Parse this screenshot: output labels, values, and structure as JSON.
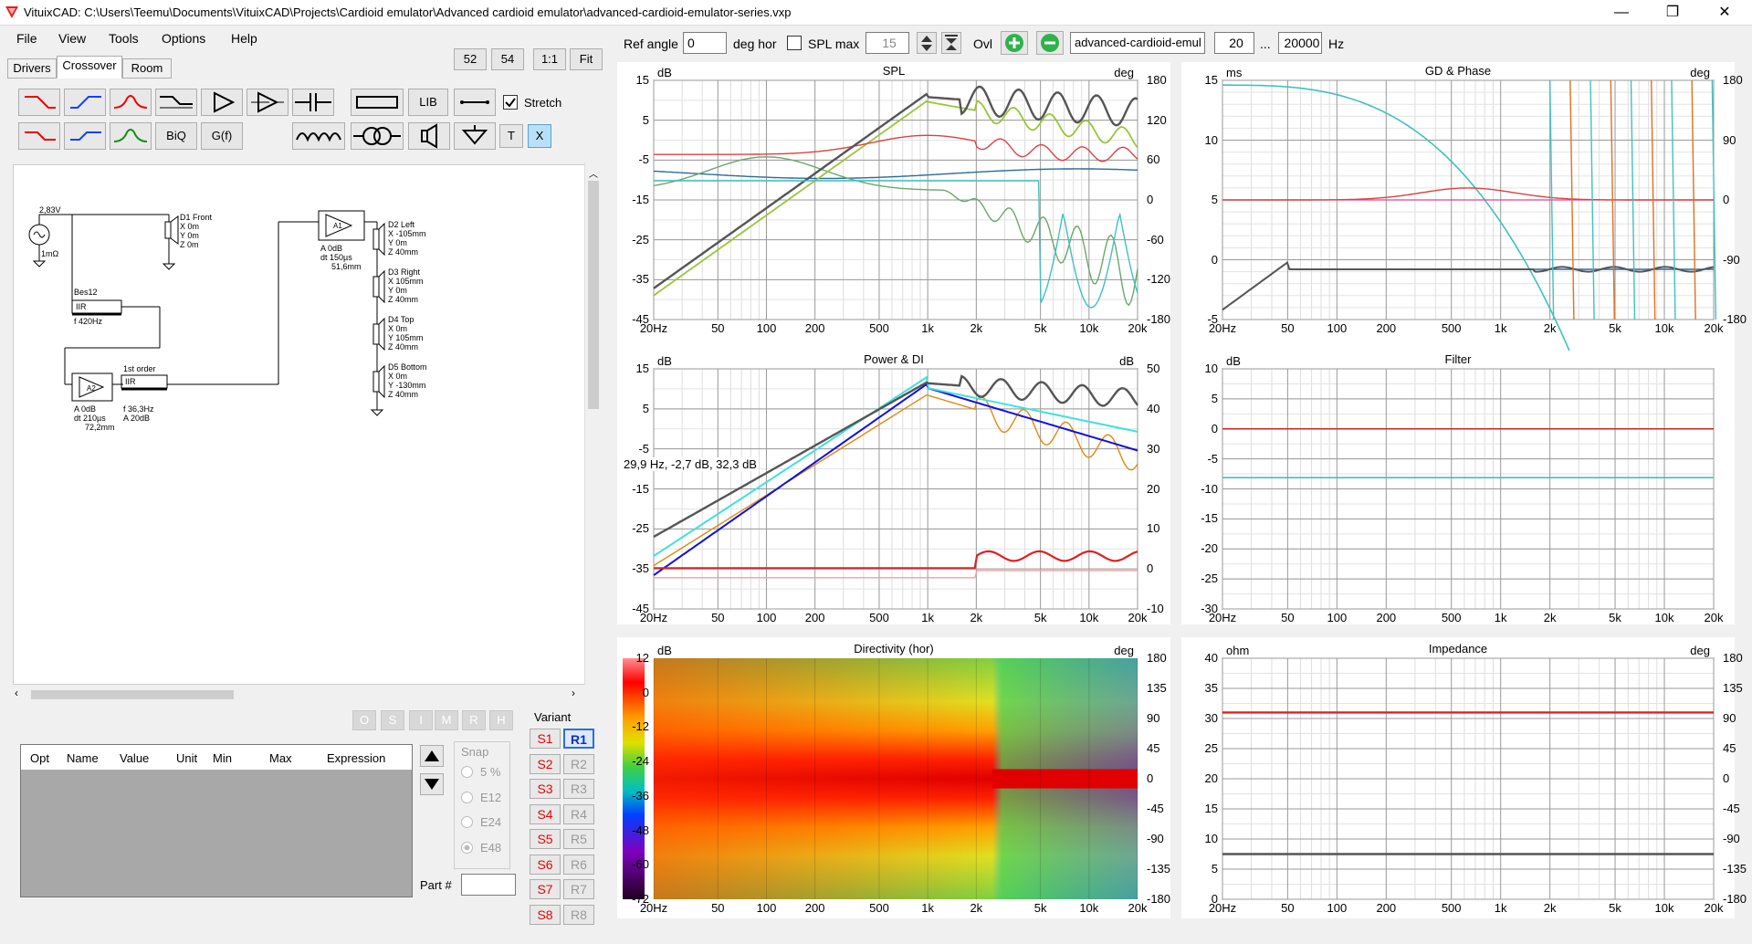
{
  "window": {
    "title": "VituixCAD: C:\\Users\\Teemu\\Documents\\VituixCAD\\Projects\\Cardioid emulator\\Advanced cardioid emulator\\advanced-cardioid-emulator-series.vxp",
    "minimize": "—",
    "restore": "❐",
    "close": "✕"
  },
  "menu": [
    "File",
    "View",
    "Tools",
    "Options",
    "Help"
  ],
  "zoom_buttons": [
    "52",
    "54",
    "1:1",
    "Fit"
  ],
  "tabs": [
    "Drivers",
    "Crossover",
    "Room"
  ],
  "tools": {
    "lib": "LIB",
    "biq": "BiQ",
    "gf": "G(f)",
    "t": "T",
    "x": "X",
    "stretch": "Stretch"
  },
  "toolbar": {
    "ref_angle_label": "Ref angle",
    "ref_angle": "0",
    "deg_hor": "deg hor",
    "spl_max_label": "SPL max",
    "spl_max": "15",
    "ovl": "Ovl",
    "project_name": "advanced-cardioid-emul",
    "f_min": "20",
    "dots": "...",
    "f_max": "20000",
    "hz": "Hz"
  },
  "schematic": {
    "source_v": "2,83V",
    "source_r": "1mΩ",
    "d1": [
      "D1 Front",
      "X 0m",
      "Y 0m",
      "Z 0m"
    ],
    "bes12": [
      "Bes12",
      "IIR",
      "f  420Hz"
    ],
    "a1": [
      "A1",
      "A  0dB",
      "dt  150µs",
      "51,6mm"
    ],
    "a2": [
      "A2",
      "A  0dB",
      "dt  210µs",
      "72,2mm"
    ],
    "first_order": [
      "1st order",
      "IIR",
      "f  36,3Hz",
      "A  20dB"
    ],
    "d2": [
      "D2 Left",
      "X -105mm",
      "Y 0m",
      "Z 40mm"
    ],
    "d3": [
      "D3 Right",
      "X 105mm",
      "Y 0m",
      "Z 40mm"
    ],
    "d4": [
      "D4 Top",
      "X 0m",
      "Y 105mm",
      "Z 40mm"
    ],
    "d5": [
      "D5 Bottom",
      "X 0m",
      "Y -130mm",
      "Z 40mm"
    ]
  },
  "opt_buttons": [
    "O",
    "S",
    "I",
    "M",
    "R",
    "H"
  ],
  "param_table_headers": [
    "Opt",
    "Name",
    "Value",
    "Unit",
    "Min",
    "Max",
    "Expression"
  ],
  "snap": {
    "label": "Snap",
    "options": [
      "5 %",
      "E12",
      "E24",
      "E48"
    ]
  },
  "part_label": "Part #",
  "variant": {
    "label": "Variant",
    "s": [
      "S1",
      "S2",
      "S3",
      "S4",
      "S5",
      "S6",
      "S7",
      "S8"
    ],
    "r": [
      "R1",
      "R2",
      "R3",
      "R4",
      "R5",
      "R6",
      "R7",
      "R8"
    ]
  },
  "freq_ticks": [
    "20Hz",
    "50",
    "100",
    "200",
    "500",
    "1k",
    "2k",
    "5k",
    "10k",
    "20k"
  ],
  "plots": {
    "spl": {
      "title": "SPL",
      "lunit": "dB",
      "runit": "deg",
      "left": [
        "15",
        "5",
        "-5",
        "-15",
        "-25",
        "-35",
        "-45"
      ],
      "right": [
        "180",
        "120",
        "60",
        "0",
        "-60",
        "-120",
        "-180"
      ]
    },
    "gd": {
      "title": "GD & Phase",
      "lunit": "ms",
      "runit": "deg",
      "left": [
        "15",
        "10",
        "5",
        "0",
        "-5"
      ],
      "right": [
        "180",
        "90",
        "0",
        "-90",
        "-180"
      ]
    },
    "power": {
      "title": "Power & DI",
      "lunit": "dB",
      "runit": "dB",
      "left": [
        "15",
        "5",
        "-5",
        "-15",
        "-25",
        "-35",
        "-45"
      ],
      "right": [
        "50",
        "40",
        "30",
        "20",
        "10",
        "0",
        "-10"
      ],
      "readout": "29,9 Hz, -2,7 dB, 32,3 dB"
    },
    "filter": {
      "title": "Filter",
      "lunit": "dB",
      "left": [
        "10",
        "5",
        "0",
        "-5",
        "-10",
        "-15",
        "-20",
        "-25",
        "-30"
      ]
    },
    "directivity": {
      "title": "Directivity (hor)",
      "lunit": "dB",
      "runit": "deg",
      "scale": [
        "12",
        "0",
        "-12",
        "-24",
        "-36",
        "-48",
        "-60",
        "-72"
      ],
      "right": [
        "180",
        "135",
        "90",
        "45",
        "0",
        "-45",
        "-90",
        "-135",
        "-180"
      ]
    },
    "impedance": {
      "title": "Impedance",
      "lunit": "ohm",
      "runit": "deg",
      "left": [
        "40",
        "35",
        "30",
        "25",
        "20",
        "15",
        "10",
        "5",
        "0"
      ],
      "right": [
        "180",
        "135",
        "90",
        "45",
        "0",
        "-45",
        "-90",
        "-135",
        "-180"
      ]
    }
  }
}
